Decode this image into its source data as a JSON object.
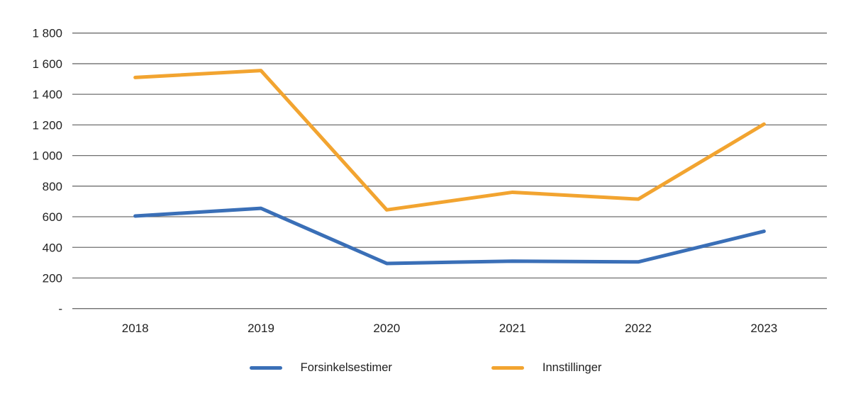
{
  "chart_data": {
    "type": "line",
    "title": "",
    "xlabel": "",
    "ylabel": "",
    "categories": [
      "2018",
      "2019",
      "2020",
      "2021",
      "2022",
      "2023"
    ],
    "series": [
      {
        "name": "Forsinkelsestimer",
        "color": "#3A6FB7",
        "values": [
          605,
          655,
          295,
          310,
          305,
          505
        ]
      },
      {
        "name": "Innstillinger",
        "color": "#F2A430",
        "values": [
          1510,
          1555,
          645,
          760,
          715,
          1205
        ]
      }
    ],
    "ylim": [
      0,
      1800
    ],
    "ytick_step": 200,
    "ytick_labels": [
      "-",
      "200",
      "400",
      "600",
      "800",
      "1 000",
      "1 200",
      "1 400",
      "1 600",
      "1 800"
    ],
    "grid": true,
    "legend_position": "bottom"
  },
  "legend": {
    "items": [
      {
        "label": "Forsinkelsestimer",
        "color": "#3A6FB7"
      },
      {
        "label": "Innstillinger",
        "color": "#F2A430"
      }
    ]
  },
  "style": {
    "grid_color": "#6F6F6F",
    "text_color": "#222222",
    "background": "#FFFFFF"
  }
}
